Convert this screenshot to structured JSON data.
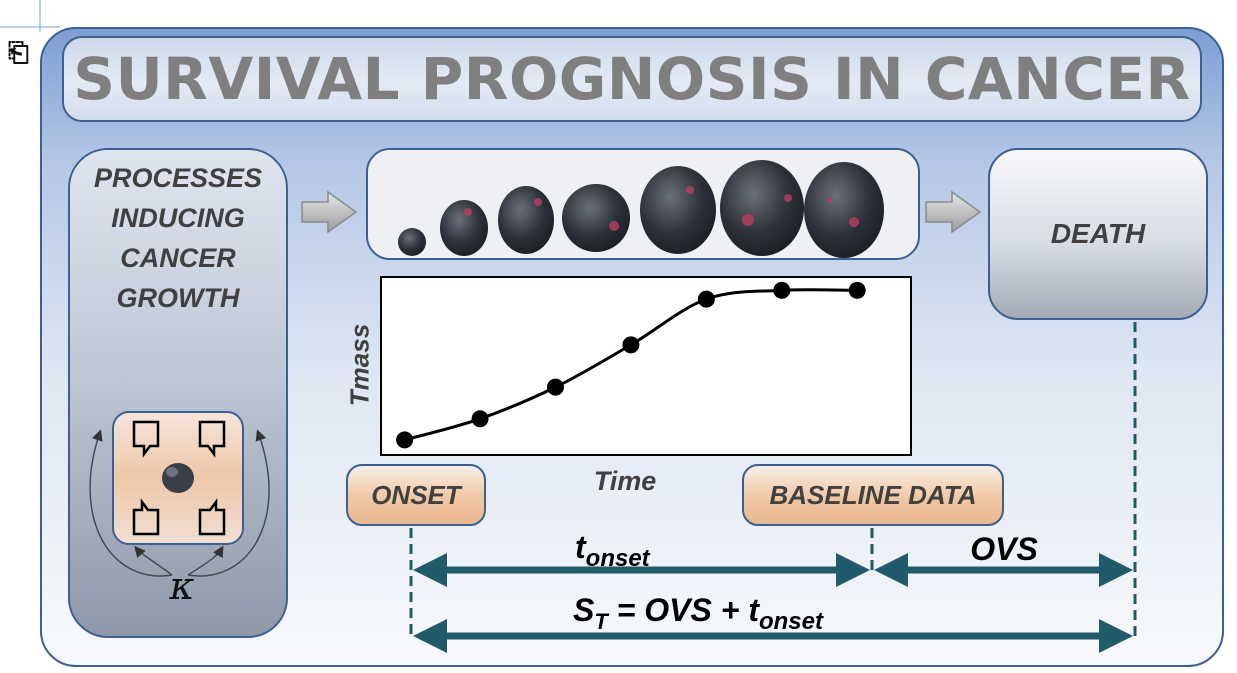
{
  "title": "SURVIVAL PROGNOSIS IN CANCER",
  "processes_label": "PROCESSES\nINDUCING\nCANCER\nGROWTH",
  "kappa_symbol": "κ",
  "death_label": "DEATH",
  "chart_data": {
    "type": "line",
    "ylabel": "Tmass",
    "xlabel": "Time",
    "x": [
      1,
      2,
      3,
      4,
      5,
      6,
      7
    ],
    "y": [
      0.08,
      0.2,
      0.38,
      0.62,
      0.88,
      0.93,
      0.93
    ],
    "ylim": [
      0,
      1
    ],
    "xlim": [
      0.7,
      7.7
    ],
    "grid": false
  },
  "onset_label": "ONSET",
  "baseline_label": "BASELINE DATA",
  "t_onset": {
    "base": "t",
    "sub": "onset"
  },
  "ovs_label": "OVS",
  "formula": {
    "lhs_base": "S",
    "lhs_sub": "T",
    "middle": " = OVS + t",
    "sub": "onset"
  },
  "colors": {
    "arrow": "#215a68",
    "frame": "#3d5f93",
    "title_text": "#7f7f7f"
  },
  "icons": [
    "right-arrow-icon",
    "tumor-image",
    "gene-network-icon"
  ]
}
